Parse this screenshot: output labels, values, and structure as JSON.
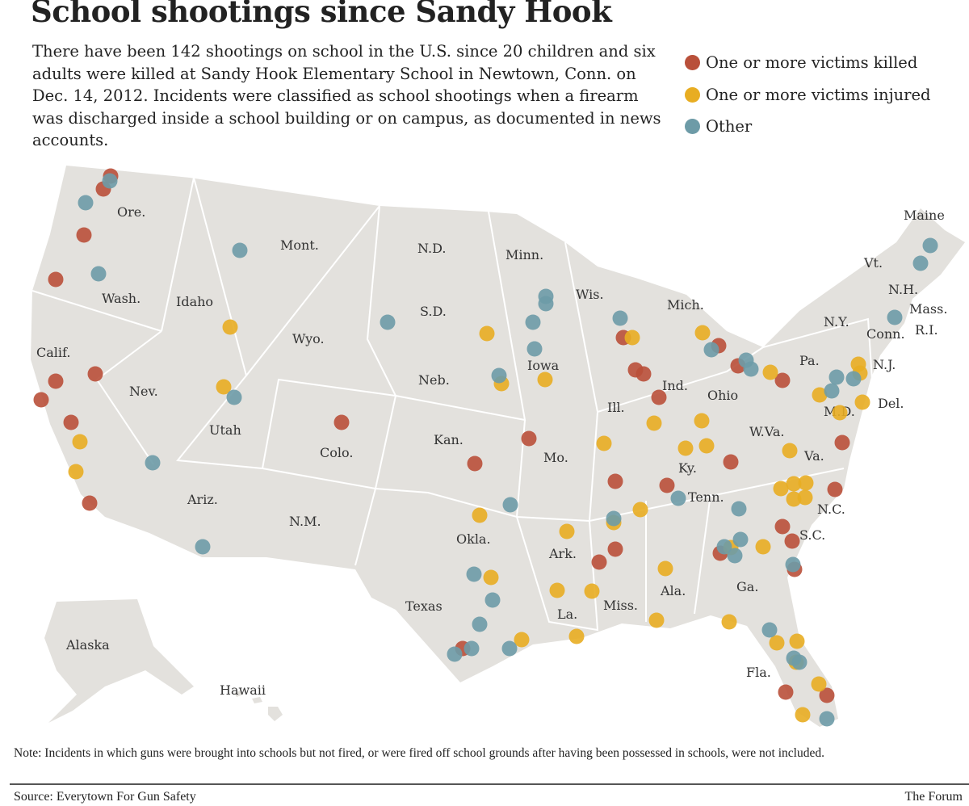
{
  "title": "School shootings since Sandy Hook",
  "intro": "There have been 142 shootings on school in the U.S. since 20 children and six adults were killed at Sandy Hook Elementary School in Newtown, Conn. on Dec. 14, 2012. Incidents were classified as school shootings when a firearm was discharged inside a school building or on campus, as documented in news accounts.",
  "legend": [
    {
      "key": "K",
      "label": "One or more victims killed",
      "color": "#b9503a"
    },
    {
      "key": "I",
      "label": "One or more victims injured",
      "color": "#e8ad22"
    },
    {
      "key": "O",
      "label": "Other",
      "color": "#6d9ba7"
    }
  ],
  "map_color": "#e3e1dd",
  "state_labels": [
    "Ore.",
    "Wash.",
    "Calif.",
    "Nev.",
    "Idaho",
    "Mont.",
    "Wyo.",
    "Utah",
    "Colo.",
    "Ariz.",
    "N.M.",
    "N.D.",
    "S.D.",
    "Neb.",
    "Kan.",
    "Okla.",
    "Texas",
    "Minn.",
    "Iowa",
    "Mo.",
    "Ark.",
    "La.",
    "Wis.",
    "Ill.",
    "Mich.",
    "Ind.",
    "Ohio",
    "Ky.",
    "Tenn.",
    "Miss.",
    "Ala.",
    "Ga.",
    "Fla.",
    "S.C.",
    "N.C.",
    "Va.",
    "W.Va.",
    "Pa.",
    "N.Y.",
    "M.D.",
    "Del.",
    "N.J.",
    "Conn.",
    "R.I.",
    "Mass.",
    "N.H.",
    "Vt.",
    "Maine",
    "Alaska",
    "Hawaii"
  ],
  "note": "Note: Incidents in which guns were brought into schools but not fired, or were fired off school grounds after having been possessed in schools, were not included.",
  "source": "Source: Everytown For Gun Safety",
  "credit": "The Forum"
}
